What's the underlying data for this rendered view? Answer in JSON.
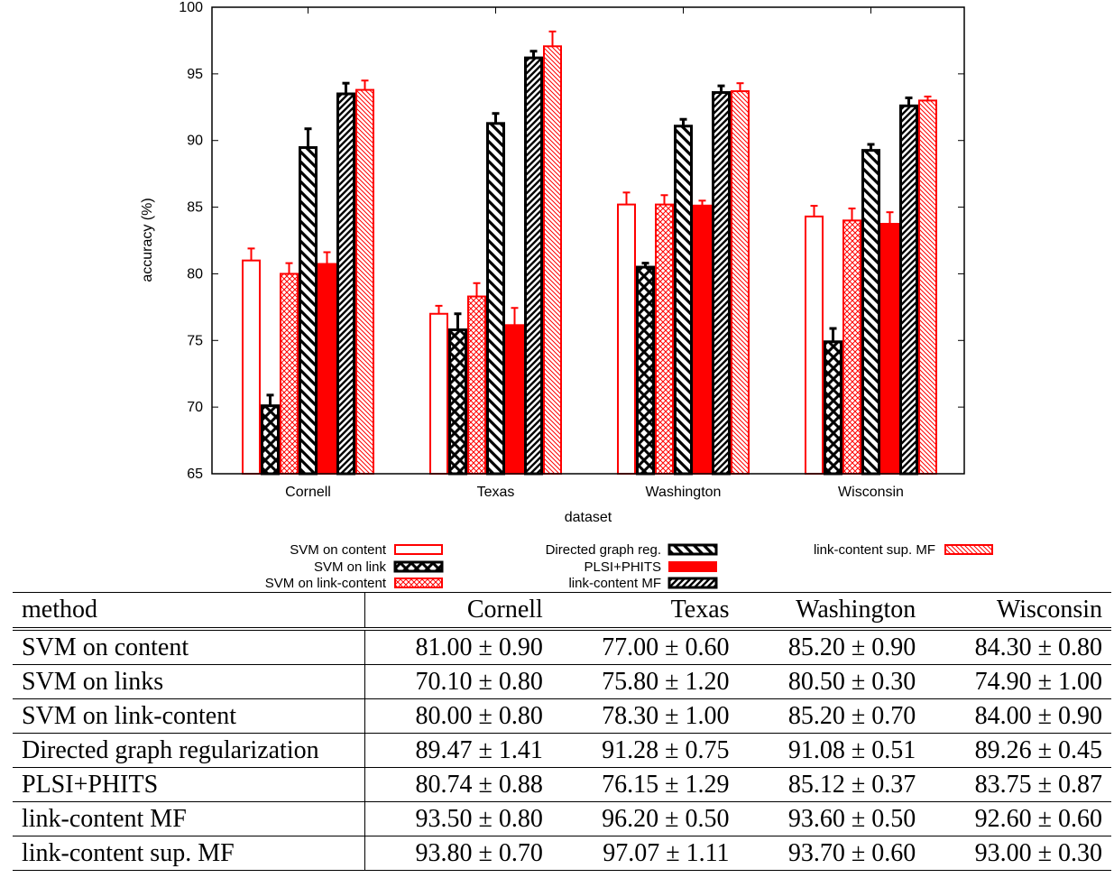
{
  "chart_data": {
    "type": "bar",
    "xlabel": "dataset",
    "ylabel": "accuracy (%)",
    "ylim": [
      65,
      100
    ],
    "yticks": [
      65,
      70,
      75,
      80,
      85,
      90,
      95,
      100
    ],
    "categories": [
      "Cornell",
      "Texas",
      "Washington",
      "Wisconsin"
    ],
    "legend_placement": "below plot, three columns",
    "series": [
      {
        "name": "SVM on content",
        "color": "#ff0000",
        "fill": "empty",
        "values": [
          81.0,
          77.0,
          85.2,
          84.3
        ],
        "errors": [
          0.9,
          0.6,
          0.9,
          0.8
        ]
      },
      {
        "name": "SVM on link",
        "color": "#000000",
        "fill": "crosshatch",
        "values": [
          70.1,
          75.8,
          80.5,
          74.9
        ],
        "errors": [
          0.8,
          1.2,
          0.3,
          1.0
        ]
      },
      {
        "name": "SVM on link-content",
        "color": "#ff0000",
        "fill": "crosshatch",
        "values": [
          80.0,
          78.3,
          85.2,
          84.0
        ],
        "errors": [
          0.8,
          1.0,
          0.7,
          0.9
        ]
      },
      {
        "name": "Directed graph reg.",
        "color": "#000000",
        "fill": "diagonal-wide",
        "values": [
          89.47,
          91.28,
          91.08,
          89.26
        ],
        "errors": [
          1.41,
          0.75,
          0.51,
          0.45
        ]
      },
      {
        "name": "PLSI+PHITS",
        "color": "#ff0000",
        "fill": "solid",
        "values": [
          80.74,
          76.15,
          85.12,
          83.75
        ],
        "errors": [
          0.88,
          1.29,
          0.37,
          0.87
        ]
      },
      {
        "name": "link-content MF",
        "color": "#000000",
        "fill": "diagonal-dense",
        "values": [
          93.5,
          96.2,
          93.6,
          92.6
        ],
        "errors": [
          0.8,
          0.5,
          0.5,
          0.6
        ]
      },
      {
        "name": "link-content sup. MF",
        "color": "#ff0000",
        "fill": "diagonal-fine",
        "values": [
          93.8,
          97.07,
          93.7,
          93.0
        ],
        "errors": [
          0.7,
          1.11,
          0.6,
          0.3
        ]
      }
    ]
  },
  "table": {
    "headers": [
      "method",
      "Cornell",
      "Texas",
      "Washington",
      "Wisconsin"
    ],
    "rows": [
      [
        "SVM on content",
        "81.00 ± 0.90",
        "77.00 ± 0.60",
        "85.20 ± 0.90",
        "84.30 ± 0.80"
      ],
      [
        "SVM on links",
        "70.10 ± 0.80",
        "75.80 ± 1.20",
        "80.50 ± 0.30",
        "74.90 ± 1.00"
      ],
      [
        "SVM on link-content",
        "80.00 ± 0.80",
        "78.30 ± 1.00",
        "85.20 ± 0.70",
        "84.00 ± 0.90"
      ],
      [
        "Directed graph regularization",
        "89.47 ± 1.41",
        "91.28 ± 0.75",
        "91.08 ± 0.51",
        "89.26 ± 0.45"
      ],
      [
        "PLSI+PHITS",
        "80.74 ± 0.88",
        "76.15 ± 1.29",
        "85.12 ± 0.37",
        "83.75 ± 0.87"
      ],
      [
        "link-content MF",
        "93.50 ± 0.80",
        "96.20 ± 0.50",
        "93.60 ± 0.50",
        "92.60 ± 0.60"
      ],
      [
        "link-content sup. MF",
        "93.80 ± 0.70",
        "97.07 ± 1.11",
        "93.70 ± 0.60",
        "93.00 ± 0.30"
      ]
    ]
  }
}
